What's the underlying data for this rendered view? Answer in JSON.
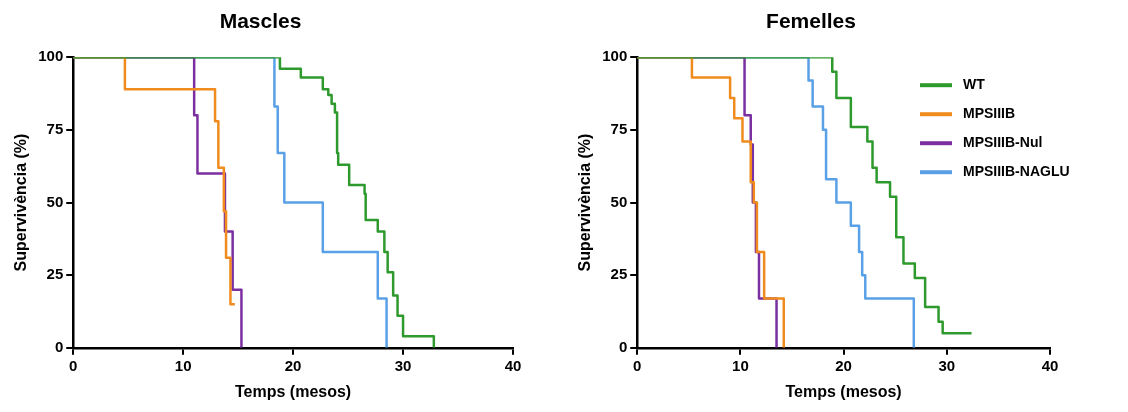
{
  "chart_data": [
    {
      "type": "step",
      "title": "Mascles",
      "xlabel": "Temps (mesos)",
      "ylabel": "Supervivència (%)",
      "xlim": [
        0,
        40
      ],
      "ylim": [
        0,
        100
      ],
      "xticks": [
        0,
        10,
        20,
        30,
        40
      ],
      "yticks": [
        0,
        25,
        50,
        75,
        100
      ],
      "grid": false,
      "legend": false,
      "series": [
        {
          "color": "#2e9a2e",
          "x": [
            0,
            18.8,
            20.7,
            22.7,
            23.2,
            23.5,
            23.8,
            24,
            24.1,
            25.1,
            26.5,
            26.6,
            27.7,
            28.3,
            28.6,
            29.1,
            29.5,
            30,
            32.8
          ],
          "values": [
            100,
            96,
            93,
            89,
            87,
            84,
            81,
            67,
            63,
            56,
            53,
            44,
            40,
            33,
            26,
            18,
            11,
            4,
            0
          ]
        },
        {
          "color": "#f08c1e",
          "x": [
            0,
            4.7,
            12.9,
            13.2,
            13.7,
            13.9,
            14.3,
            14.7
          ],
          "values": [
            100,
            89,
            78,
            62,
            47,
            31,
            15,
            15
          ]
        },
        {
          "color": "#7b2fa0",
          "x": [
            0,
            11,
            11.3,
            13.8,
            14.5,
            15.3
          ],
          "values": [
            100,
            80,
            60,
            40,
            20,
            0
          ]
        },
        {
          "color": "#5aa0e6",
          "x": [
            0,
            18.3,
            18.6,
            19.2,
            22.7,
            27.7,
            28.5
          ],
          "values": [
            100,
            83,
            67,
            50,
            33,
            17,
            0
          ]
        }
      ]
    },
    {
      "type": "step",
      "title": "Femelles",
      "xlabel": "Temps (mesos)",
      "ylabel": "Supervivència (%)",
      "xlim": [
        0,
        40
      ],
      "ylim": [
        0,
        100
      ],
      "xticks": [
        0,
        10,
        20,
        30,
        40
      ],
      "yticks": [
        0,
        25,
        50,
        75,
        100
      ],
      "grid": false,
      "legend": "top right",
      "series": [
        {
          "name": "WT",
          "color": "#2e9a2e",
          "x": [
            0,
            18.9,
            19.3,
            20.7,
            22.3,
            22.8,
            23.2,
            24.5,
            25.1,
            25.8,
            26.9,
            27.9,
            29.2,
            29.6,
            32.4
          ],
          "values": [
            100,
            95,
            86,
            76,
            71,
            62,
            57,
            52,
            38,
            29,
            24,
            14,
            9,
            5,
            5
          ]
        },
        {
          "name": "MPSIIIB",
          "color": "#f08c1e",
          "x": [
            0,
            5.3,
            9,
            9.4,
            10.2,
            11,
            11.3,
            11.6,
            12.3,
            14.2
          ],
          "values": [
            100,
            93,
            86,
            79,
            71,
            57,
            50,
            33,
            17,
            0
          ]
        },
        {
          "name": "MPSIIIB-Nul",
          "color": "#7b2fa0",
          "x": [
            0,
            10.4,
            11,
            11.2,
            11.5,
            11.8,
            13.5
          ],
          "values": [
            100,
            80,
            70,
            50,
            33,
            17,
            0
          ]
        },
        {
          "name": "MPSIIIB-NAGLU",
          "color": "#5aa0e6",
          "x": [
            0,
            16.6,
            17,
            18,
            18.3,
            19.3,
            20.7,
            21.5,
            21.8,
            22.1,
            26.8
          ],
          "values": [
            100,
            92,
            83,
            75,
            58,
            50,
            42,
            33,
            25,
            17,
            0
          ]
        }
      ]
    }
  ]
}
